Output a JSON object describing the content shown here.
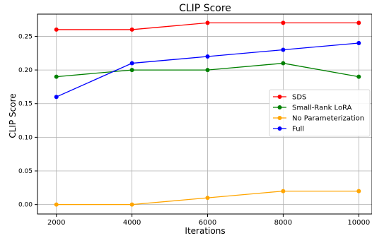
{
  "chart_data": {
    "type": "line",
    "title": "CLIP Score",
    "xlabel": "Iterations",
    "ylabel": "CLIP Score",
    "x": [
      2000,
      4000,
      6000,
      8000,
      10000
    ],
    "xticks": [
      "2000",
      "4000",
      "6000",
      "8000",
      "10000"
    ],
    "yticks": [
      "0.00",
      "0.05",
      "0.10",
      "0.15",
      "0.20",
      "0.25"
    ],
    "ytick_values": [
      0.0,
      0.05,
      0.1,
      0.15,
      0.2,
      0.25
    ],
    "xlim": [
      1500,
      10350
    ],
    "ylim": [
      -0.014,
      0.283
    ],
    "grid": true,
    "legend_position": "center-right",
    "series": [
      {
        "name": "SDS",
        "color": "#ff0000",
        "values": [
          0.26,
          0.26,
          0.27,
          0.27,
          0.27
        ]
      },
      {
        "name": "Small-Rank LoRA",
        "color": "#008000",
        "values": [
          0.19,
          0.2,
          0.2,
          0.21,
          0.19
        ]
      },
      {
        "name": "No Parameterization",
        "color": "#ffa500",
        "values": [
          0.0,
          0.0,
          0.01,
          0.02,
          0.02
        ]
      },
      {
        "name": "Full",
        "color": "#0000ff",
        "values": [
          0.16,
          0.21,
          0.22,
          0.23,
          0.24
        ]
      }
    ]
  }
}
